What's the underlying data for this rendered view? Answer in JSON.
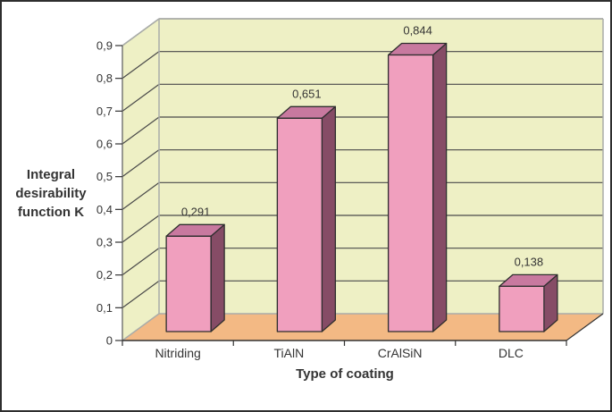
{
  "figure": {
    "background": "#ffffff",
    "border_color": "#2e2e2e"
  },
  "chart_data": {
    "type": "bar",
    "projection": "3d",
    "xlabel": "Type of coating",
    "ylabel": "Integral desirability function K",
    "ylabel_lines": [
      "Integral",
      "desirability",
      "function K"
    ],
    "categories": [
      "Nitriding",
      "TiAlN",
      "CrAlSiN",
      "DLC"
    ],
    "values": [
      0.291,
      0.651,
      0.844,
      0.138
    ],
    "value_labels": [
      "0,291",
      "0,651",
      "0,844",
      "0,138"
    ],
    "ylim": [
      0,
      0.9
    ],
    "ytick_step": 0.1,
    "ytick_labels": [
      "0",
      "0,1",
      "0,2",
      "0,3",
      "0,4",
      "0,5",
      "0,6",
      "0,7",
      "0,8",
      "0,9"
    ],
    "decimal_separator": ",",
    "grid": true,
    "legend": false,
    "colors": {
      "bar_front": "#f09fbe",
      "bar_top": "#c8799f",
      "bar_side": "#864c66",
      "bar_outline": "#2e2e2e",
      "wall": "#eef0c5",
      "wall_edge": "#a9aca9",
      "floor": "#f3b984",
      "gridline": "#4a4a4a",
      "y_axis_line": "#6f6f6f",
      "x_axis_line": "#333333",
      "tick": "#333333",
      "text": "#343434"
    }
  }
}
